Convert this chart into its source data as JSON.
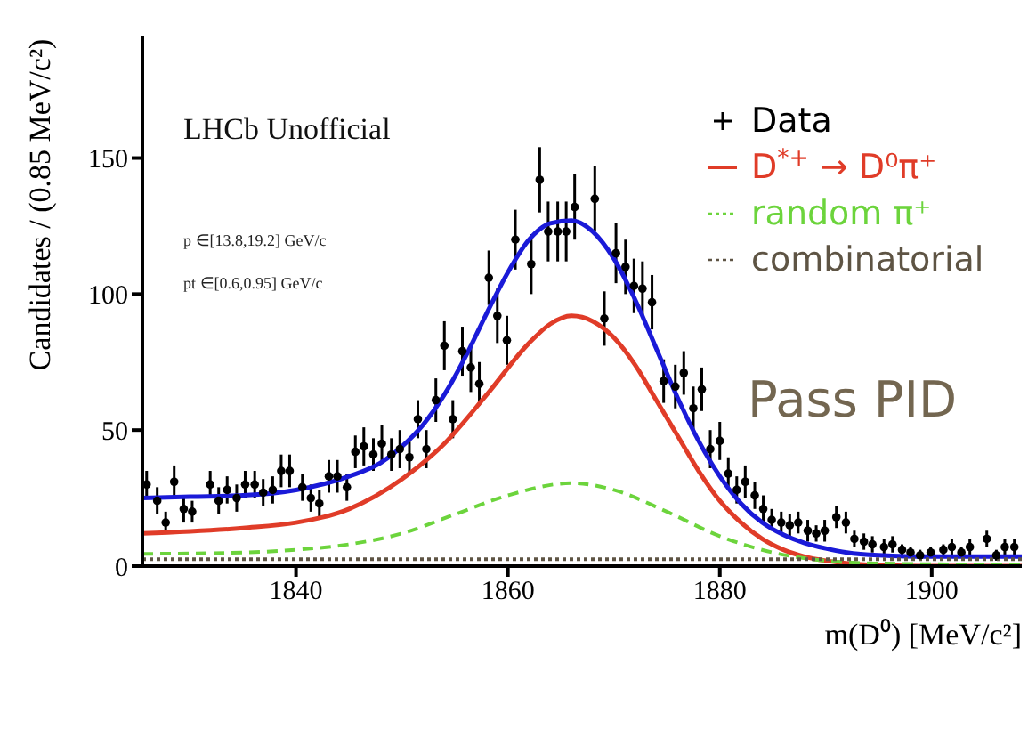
{
  "chart_data": {
    "type": "scatter",
    "xlabel": "m(D⁰) [MeV/c²]",
    "ylabel": "Candidates / (0.85 MeV/c²)",
    "annotations": [
      "LHCb Unofficial",
      "p ∈[13.8,19.2] GeV/c",
      "pt ∈[0.6,0.95] GeV/c",
      "Pass PID"
    ],
    "xlim": [
      1825.5,
      1908.5
    ],
    "ylim": [
      0,
      195
    ],
    "xticks": [
      1840,
      1860,
      1880,
      1900
    ],
    "yticks": [
      0,
      50,
      100,
      150
    ],
    "grid": false,
    "legend": "top right",
    "series": [
      {
        "name": "Data",
        "marker": "circle",
        "color": "#000000",
        "x": [
          1825.9,
          1826.9,
          1827.7,
          1828.5,
          1829.4,
          1830.2,
          1831.9,
          1832.7,
          1833.5,
          1834.4,
          1835.2,
          1836.1,
          1836.9,
          1837.8,
          1838.6,
          1839.4,
          1840.6,
          1841.4,
          1842.2,
          1843.1,
          1843.9,
          1844.8,
          1845.6,
          1846.4,
          1847.3,
          1848.1,
          1849.0,
          1849.8,
          1850.7,
          1851.5,
          1852.3,
          1853.2,
          1854.0,
          1854.8,
          1855.7,
          1856.5,
          1857.3,
          1858.2,
          1859.0,
          1859.9,
          1860.7,
          1862.2,
          1863.0,
          1863.8,
          1864.7,
          1865.5,
          1866.3,
          1868.2,
          1869.1,
          1870.2,
          1871.1,
          1871.9,
          1872.7,
          1873.6,
          1874.7,
          1875.8,
          1876.6,
          1877.5,
          1878.3,
          1879.1,
          1880.0,
          1880.8,
          1881.6,
          1882.4,
          1883.3,
          1884.1,
          1884.9,
          1885.8,
          1886.6,
          1887.4,
          1888.3,
          1889.1,
          1889.9,
          1891.0,
          1891.9,
          1892.7,
          1893.6,
          1894.4,
          1895.5,
          1896.3,
          1897.2,
          1898.0,
          1898.9,
          1899.9,
          1901.1,
          1901.9,
          1902.8,
          1903.6,
          1905.2,
          1906.1,
          1906.9,
          1907.8
        ],
        "values": [
          30,
          24,
          16,
          31,
          21,
          20,
          30,
          24,
          28,
          25,
          30,
          30,
          27,
          28,
          35,
          35,
          29,
          25,
          23,
          33,
          33,
          29,
          42,
          44,
          41,
          45,
          41,
          43,
          40,
          54,
          43,
          61,
          81,
          54,
          79,
          73,
          67,
          106,
          92,
          83,
          120,
          111,
          142,
          123,
          123,
          123,
          132,
          135,
          91,
          115,
          110,
          103,
          102,
          97,
          68,
          66,
          71,
          58,
          65,
          43,
          46,
          34,
          28,
          31,
          26,
          21,
          17,
          16,
          15,
          16,
          13,
          12,
          13,
          18,
          16,
          10,
          9,
          8,
          7,
          8,
          6,
          5,
          4,
          5,
          6,
          7,
          5,
          7,
          10,
          4,
          7,
          7
        ],
        "errors": [
          5,
          5,
          4,
          6,
          5,
          4,
          5,
          5,
          5,
          5,
          5,
          5,
          5,
          5,
          6,
          6,
          5,
          5,
          5,
          6,
          6,
          5,
          6,
          7,
          6,
          7,
          6,
          7,
          6,
          7,
          7,
          8,
          9,
          7,
          9,
          9,
          8,
          10,
          10,
          9,
          11,
          11,
          12,
          11,
          11,
          11,
          12,
          12,
          10,
          11,
          10,
          10,
          10,
          10,
          8,
          8,
          8,
          8,
          8,
          7,
          7,
          6,
          5,
          6,
          5,
          5,
          4,
          4,
          4,
          4,
          4,
          3,
          4,
          4,
          4,
          3,
          3,
          3,
          3,
          3,
          2,
          2,
          2,
          2,
          2,
          3,
          2,
          3,
          3,
          2,
          3,
          3
        ]
      },
      {
        "type": "line",
        "color": "#1a1ad8",
        "line_style": "solid",
        "x": [
          1825.5,
          1830,
          1835,
          1840,
          1845,
          1848,
          1850,
          1852,
          1854,
          1856,
          1858,
          1860,
          1862,
          1864,
          1866,
          1868,
          1870,
          1872,
          1874,
          1876,
          1878,
          1880,
          1882,
          1884,
          1886,
          1888,
          1890,
          1892,
          1895,
          1900,
          1908.5
        ],
        "values": [
          25,
          25.5,
          26,
          28,
          33,
          38,
          44,
          52,
          63,
          77,
          93,
          108,
          120,
          126,
          127,
          123,
          113,
          98,
          80,
          62,
          46,
          33,
          23,
          16,
          11.5,
          8.5,
          6.5,
          5,
          4,
          3.5,
          3.5
        ]
      },
      {
        "name": "D$^{*+}$ → D⁰π⁺",
        "type": "line",
        "color": "#e03c28",
        "line_style": "solid",
        "x": [
          1825.5,
          1835,
          1840,
          1845,
          1850,
          1854,
          1858,
          1862,
          1864,
          1866,
          1868,
          1870,
          1872,
          1874,
          1876,
          1878,
          1880,
          1882,
          1884,
          1886,
          1888,
          1890,
          1894,
          1900,
          1908.5
        ],
        "values": [
          12,
          14,
          16,
          21,
          32,
          45,
          63,
          82,
          89,
          92,
          90,
          84,
          74,
          61,
          48,
          35,
          24,
          16,
          10,
          6,
          3.5,
          2,
          0.5,
          0,
          0
        ]
      },
      {
        "name": "random π⁺",
        "type": "line",
        "color": "#6cd43c",
        "line_style": "dashed",
        "x": [
          1825.5,
          1835,
          1840,
          1845,
          1850,
          1855,
          1860,
          1866,
          1870,
          1875,
          1880,
          1885,
          1890,
          1895,
          1908.5
        ],
        "values": [
          4.5,
          5,
          6,
          8,
          12,
          19,
          26,
          30.5,
          28,
          20,
          11,
          5,
          2,
          1,
          0.5
        ]
      },
      {
        "name": "combinatorial",
        "type": "line",
        "color": "#5e5444",
        "line_style": "dotted",
        "x": [
          1825.5,
          1908.5
        ],
        "values": [
          2.5,
          2.5
        ]
      }
    ]
  }
}
